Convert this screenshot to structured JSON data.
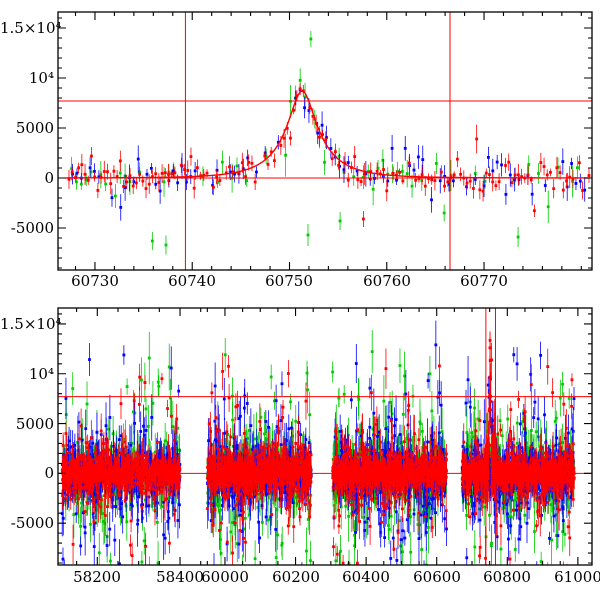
{
  "figure": {
    "background": "#ffffff",
    "frame_color": "#000000",
    "guide_color": "#ff0000"
  },
  "chart_data": [
    {
      "type": "scatter",
      "panel": "top",
      "xlim": [
        60726.2,
        60781.1
      ],
      "ylim": [
        -9200,
        16600
      ],
      "x_segments": [
        {
          "range": [
            60726.2,
            60781.1
          ],
          "frac": [
            0,
            1
          ]
        }
      ],
      "xticks": [
        {
          "value": 60730,
          "label": "60730"
        },
        {
          "value": 60740,
          "label": "60740"
        },
        {
          "value": 60750,
          "label": "60750"
        },
        {
          "value": 60760,
          "label": "60760"
        },
        {
          "value": 60770,
          "label": "60770"
        }
      ],
      "yticks": [
        {
          "value": -5000,
          "label": "-5000"
        },
        {
          "value": 0,
          "label": "0"
        },
        {
          "value": 5000,
          "label": "5000"
        },
        {
          "value": 10000,
          "label": "10⁴"
        },
        {
          "value": 15000,
          "label": "1.5×10⁴"
        }
      ],
      "minor_x_step": 2,
      "minor_y_step": 1000,
      "hlines": [
        {
          "y": 7700,
          "color": "#ff0000"
        },
        {
          "y": 0,
          "color": "#ff0000"
        }
      ],
      "vlines": [
        {
          "x": 60739.3,
          "color": "#ff0000"
        },
        {
          "x": 60766.5,
          "color": "#ff0000"
        }
      ],
      "model_curve": {
        "color": "#ff0000",
        "t0": 60751.3,
        "tE": 5.0,
        "u0": 0.3,
        "flux_scale": 3560,
        "baseline": 0
      },
      "sampling": {
        "range": [
          60727,
          60780.8
        ]
      },
      "series": [
        {
          "name": "green",
          "color": "#00cc00",
          "step": 0.5,
          "phase": 0.1,
          "drop": 0.45,
          "err": [
            500,
            1700
          ],
          "outlier_prob": 0.06,
          "outlier_mag": [
            2000,
            7000
          ],
          "outlier_neg_prob": 0.75
        },
        {
          "name": "blue",
          "color": "#0000ff",
          "step": 0.45,
          "phase": 0.25,
          "drop": 0.3,
          "err": [
            450,
            1400
          ],
          "outlier_prob": 0.015,
          "outlier_mag": [
            1500,
            4000
          ],
          "outlier_neg_prob": 0.6
        },
        {
          "name": "red",
          "color": "#ff0000",
          "step": 0.33,
          "phase": 0.0,
          "drop": 0.15,
          "err": [
            350,
            1100
          ],
          "outlier_prob": 0.02,
          "outlier_mag": [
            1500,
            4500
          ],
          "outlier_neg_prob": 0.6
        }
      ],
      "outliers": [
        {
          "t": 60752.2,
          "y": 13900,
          "err": 800,
          "series": "green"
        },
        {
          "t": 60735.9,
          "y": -6300,
          "err": 900,
          "series": "green"
        },
        {
          "t": 60737.3,
          "y": -6700,
          "err": 950,
          "series": "green"
        },
        {
          "t": 60751.9,
          "y": -5700,
          "err": 1100,
          "series": "green"
        },
        {
          "t": 60755.2,
          "y": -4300,
          "err": 900,
          "series": "green"
        },
        {
          "t": 60765.9,
          "y": -3500,
          "err": 850,
          "series": "green"
        },
        {
          "t": 60773.5,
          "y": -5900,
          "err": 1000,
          "series": "green"
        },
        {
          "t": 60757.6,
          "y": -4100,
          "err": 800,
          "series": "red"
        }
      ]
    },
    {
      "type": "scatter",
      "panel": "bottom",
      "ylim": [
        -9200,
        16600
      ],
      "x_segments": [
        {
          "range": [
            58105,
            58460
          ],
          "frac": [
            0,
            0.275
          ]
        },
        {
          "range": [
            59943,
            61040
          ],
          "frac": [
            0.275,
            1
          ]
        }
      ],
      "xticks": [
        {
          "value": 58200,
          "label": "58200"
        },
        {
          "value": 58400,
          "label": "58400"
        },
        {
          "value": 60000,
          "label": "60000"
        },
        {
          "value": 60200,
          "label": "60200"
        },
        {
          "value": 60400,
          "label": "60400"
        },
        {
          "value": 60600,
          "label": "60600"
        },
        {
          "value": 60800,
          "label": "60800"
        },
        {
          "value": 61000,
          "label": "61000"
        }
      ],
      "yticks": [
        {
          "value": -5000,
          "label": "-5000"
        },
        {
          "value": 0,
          "label": "0"
        },
        {
          "value": 5000,
          "label": "5000"
        },
        {
          "value": 10000,
          "label": "10⁴"
        },
        {
          "value": 15000,
          "label": "1.5×10⁴"
        }
      ],
      "minor_x_step": 50,
      "minor_y_step": 1000,
      "hlines": [
        {
          "y": 7700,
          "color": "#ff0000"
        },
        {
          "y": 0,
          "color": "#ff0000"
        }
      ],
      "vlines": [
        {
          "x": 60739.3,
          "color": "#ff0000"
        },
        {
          "x": 60766.5,
          "color": "#ff0000"
        }
      ],
      "seasons": [
        [
          58115,
          58400
        ],
        [
          59950,
          60245
        ],
        [
          60305,
          60628
        ],
        [
          60672,
          60990
        ]
      ],
      "event": {
        "range": [
          60735,
          60768
        ],
        "series": "red",
        "err_scale": 1.8,
        "t0": 60751.3,
        "tE": 5.0,
        "u0": 0.3,
        "flux_scale": 5200,
        "baseline": 0
      },
      "series": [
        {
          "name": "green",
          "color": "#00cc00",
          "step": 0.38,
          "phase": 0.13,
          "drop": 0.3,
          "err": [
            500,
            2000
          ],
          "outlier_prob": 0.13,
          "outlier_mag": [
            2200,
            12500
          ],
          "outlier_neg_prob": 0.5
        },
        {
          "name": "blue",
          "color": "#0000ff",
          "step": 0.36,
          "phase": 0.21,
          "drop": 0.3,
          "err": [
            450,
            1800
          ],
          "outlier_prob": 0.12,
          "outlier_mag": [
            2200,
            12500
          ],
          "outlier_neg_prob": 0.5
        },
        {
          "name": "red",
          "color": "#ff0000",
          "step": 0.33,
          "phase": 0.0,
          "drop": 0.25,
          "err": [
            400,
            1500
          ],
          "outlier_prob": 0.1,
          "outlier_mag": [
            2200,
            12000
          ],
          "outlier_neg_prob": 0.5
        }
      ]
    }
  ]
}
